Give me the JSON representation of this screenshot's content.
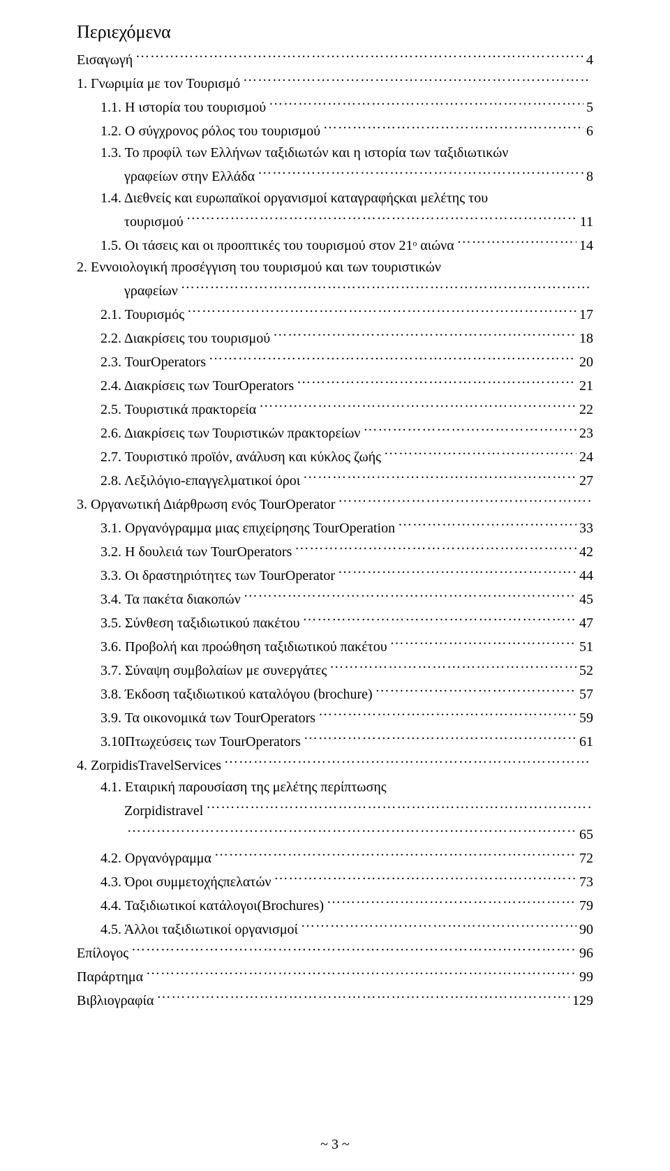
{
  "title": "Περιεχόμενα",
  "entries": [
    {
      "indent": 0,
      "label": "Εισαγωγή",
      "page": "4"
    },
    {
      "indent": 0,
      "label": "1. Γνωριμία με τον Τουρισμό",
      "page": ""
    },
    {
      "indent": 1,
      "label": "1.1. Η ιστορία του τουρισμού",
      "page": "5"
    },
    {
      "indent": 1,
      "label": "1.2. Ο σύγχρονος ρόλος του τουρισμού",
      "page": "6"
    },
    {
      "indent": 1,
      "label": "1.3. Το προφίλ των Ελλήνων ταξιδιωτών και η ιστορία των ταξιδιωτικών",
      "cont": "γραφείων στην Ελλάδα",
      "page": "8"
    },
    {
      "indent": 1,
      "label": "1.4. Διεθνείς και ευρωπαϊκοί οργανισμοί καταγραφήςκαι μελέτης του",
      "cont": "τουρισμού",
      "page": "11"
    },
    {
      "indent": 1,
      "label": "1.5. Οι τάσεις και οι προοπτικές του τουρισμού στον 21ᵒ αιώνα",
      "page": "14"
    },
    {
      "indent": 0,
      "label": "2. Εννοιολογική    προσέγγιση    του    τουρισμού    και    των    τουριστικών",
      "cont": "γραφείων",
      "page": ""
    },
    {
      "indent": 1,
      "label": "2.1. Τουρισμός",
      "page": "17"
    },
    {
      "indent": 1,
      "label": "2.2. Διακρίσεις του τουρισμού",
      "page": "18"
    },
    {
      "indent": 1,
      "label": "2.3. TourOperators",
      "page": "20"
    },
    {
      "indent": 1,
      "label": "2.4. Διακρίσεις των TourOperators",
      "page": "21"
    },
    {
      "indent": 1,
      "label": "2.5. Τουριστικά πρακτορεία",
      "page": "22"
    },
    {
      "indent": 1,
      "label": "2.6. Διακρίσεις των Τουριστικών πρακτορείων",
      "page": "23"
    },
    {
      "indent": 1,
      "label": "2.7. Τουριστικό προϊόν, ανάλυση και κύκλος ζωής",
      "page": "24"
    },
    {
      "indent": 1,
      "label": "2.8. Λεξιλόγιο-επαγγελματικοί όροι",
      "page": "27"
    },
    {
      "indent": 0,
      "label": "3. Οργανωτική Διάρθρωση ενός TourOperator",
      "page": ""
    },
    {
      "indent": 1,
      "label": "3.1. Οργανόγραμμα μιας επιχείρησης TourOperation",
      "page": "33"
    },
    {
      "indent": 1,
      "label": "3.2. Η δουλειά των TourOperators",
      "page": "42"
    },
    {
      "indent": 1,
      "label": "3.3. Οι δραστηριότητες των TourOperator",
      "page": "44"
    },
    {
      "indent": 1,
      "label": "3.4. Τα πακέτα διακοπών",
      "page": "45"
    },
    {
      "indent": 1,
      "label": "3.5. Σύνθεση ταξιδιωτικού πακέτου",
      "page": "47"
    },
    {
      "indent": 1,
      "label": "3.6. Προβολή και προώθηση ταξιδιωτικού πακέτου",
      "page": "51"
    },
    {
      "indent": 1,
      "label": "3.7. Σύναψη συμβολαίων με συνεργάτες",
      "page": "52"
    },
    {
      "indent": 1,
      "label": "3.8. Έκδοση ταξιδιωτικού καταλόγου (brochure)",
      "page": "57"
    },
    {
      "indent": 1,
      "label": "3.9. Τα οικονομικά των TourOperators",
      "page": "59"
    },
    {
      "indent": 1,
      "label": "3.10Πτωχεύσεις των TourOperators",
      "page": "61"
    },
    {
      "indent": 0,
      "label": "4. ZorpidisTravelServices",
      "page": ""
    },
    {
      "indent": 1,
      "label": "4.1. Εταιρική      παρουσίαση      της      μελέτης      περίπτωσης",
      "cont": "Zorpidistravel",
      "page": "",
      "cont2": "",
      "page2": "65"
    },
    {
      "indent": 1,
      "label": "4.2. Οργανόγραμμα",
      "page": "72"
    },
    {
      "indent": 1,
      "label": "4.3. Όροι συμμετοχήςπελατών",
      "page": "73"
    },
    {
      "indent": 1,
      "label": "4.4. Ταξιδιωτικοί κατάλογοι(Brochures)",
      "page": "79"
    },
    {
      "indent": 1,
      "label": "4.5. Άλλοι ταξιδιωτικοί οργανισμοί",
      "page": "90"
    },
    {
      "indent": 0,
      "label": "Επίλογος",
      "page": "96"
    },
    {
      "indent": 0,
      "label": "Παράρτημα",
      "page": "99"
    },
    {
      "indent": 0,
      "label": "Βιβλιογραφία",
      "page": "129"
    }
  ],
  "footer": "~ 3 ~",
  "colors": {
    "text": "#000000",
    "background": "#ffffff"
  },
  "font": {
    "family": "Times New Roman",
    "size_pt": 15
  }
}
